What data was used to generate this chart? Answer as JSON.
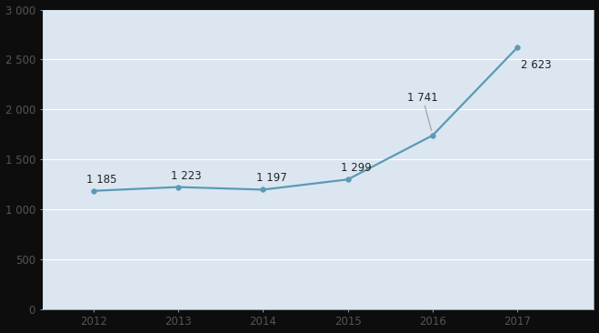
{
  "years": [
    2012,
    2013,
    2014,
    2015,
    2016,
    2017
  ],
  "values": [
    1185,
    1223,
    1197,
    1299,
    1741,
    2623
  ],
  "labels": [
    "1 185",
    "1 223",
    "1 197",
    "1 299",
    "1 741",
    "2 623"
  ],
  "ytick_labels": [
    "0",
    "500",
    "1 000",
    "1 500",
    "2 000",
    "2 500",
    "3 000"
  ],
  "line_color": "#5b9ab5",
  "annotation_line_color": "#aaaaaa",
  "plot_bg_color": "#dce6f1",
  "fig_bg_color": "#1a1a1a",
  "outer_bg_color": "#000000",
  "grid_color": "#ffffff",
  "border_color": "#c8d4e3",
  "tick_color": "#555555",
  "label_color": "#222222",
  "ylim": [
    0,
    3000
  ],
  "yticks": [
    0,
    500,
    1000,
    1500,
    2000,
    2500,
    3000
  ],
  "xlim": [
    2011.4,
    2017.9
  ],
  "label_fontsize": 8.5,
  "tick_fontsize": 8.5,
  "line_width": 1.6,
  "marker_size": 4
}
